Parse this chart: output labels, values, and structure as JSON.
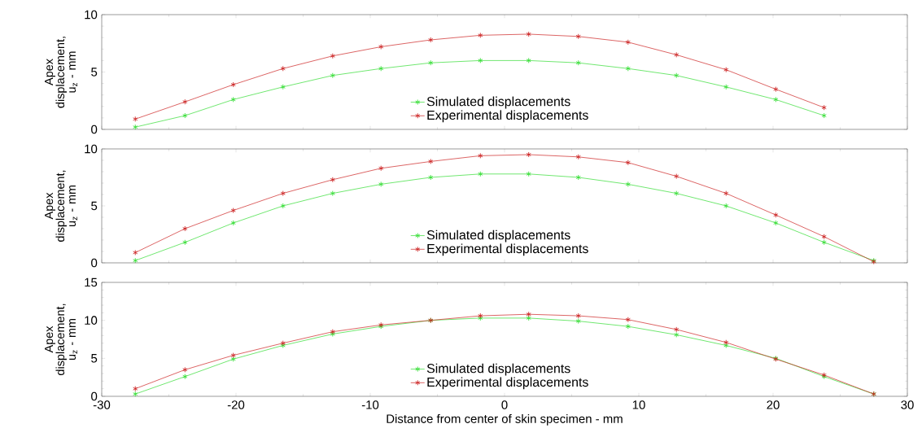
{
  "chart_data": [
    {
      "type": "line",
      "ylabel": "Apex displacement, u$_{z}$ - mm",
      "xlim": [
        -30,
        30
      ],
      "xticks": [
        -30,
        -20,
        -10,
        0,
        10,
        20,
        30
      ],
      "ylim": [
        0,
        10
      ],
      "yticks": [
        0,
        5,
        10
      ],
      "tick_labels": "y",
      "legend": "bottom",
      "marker": "cross",
      "grid": false,
      "series": [
        {
          "name": "Simulated displacements",
          "color": "#33dd33",
          "x": [
            -27.5,
            -23.8,
            -20.2,
            -16.5,
            -12.8,
            -9.2,
            -5.5,
            -1.8,
            1.8,
            5.5,
            9.2,
            12.8,
            16.5,
            20.2,
            23.8
          ],
          "values": [
            0.2,
            1.2,
            2.6,
            3.7,
            4.7,
            5.3,
            5.8,
            6.0,
            6.0,
            5.8,
            5.3,
            4.7,
            3.7,
            2.6,
            1.2
          ]
        },
        {
          "name": "Experimental displacements",
          "color": "#cc2222",
          "x": [
            -27.5,
            -23.8,
            -20.2,
            -16.5,
            -12.8,
            -9.2,
            -5.5,
            -1.8,
            1.8,
            5.5,
            9.2,
            12.8,
            16.5,
            20.2,
            23.8
          ],
          "values": [
            0.9,
            2.4,
            3.9,
            5.3,
            6.4,
            7.2,
            7.8,
            8.2,
            8.3,
            8.1,
            7.6,
            6.5,
            5.2,
            3.5,
            1.9
          ]
        }
      ]
    },
    {
      "type": "line",
      "ylabel": "Apex displacement, u$_{z}$ - mm",
      "xlim": [
        -30,
        30
      ],
      "xticks": [
        -30,
        -20,
        -10,
        0,
        10,
        20,
        30
      ],
      "ylim": [
        0,
        10
      ],
      "yticks": [
        0,
        5,
        10
      ],
      "tick_labels": "y",
      "legend": "bottom",
      "marker": "cross",
      "grid": false,
      "series": [
        {
          "name": "Simulated displacements",
          "color": "#33dd33",
          "x": [
            -27.5,
            -23.8,
            -20.2,
            -16.5,
            -12.8,
            -9.2,
            -5.5,
            -1.8,
            1.8,
            5.5,
            9.2,
            12.8,
            16.5,
            20.2,
            23.8,
            27.5
          ],
          "values": [
            0.2,
            1.8,
            3.5,
            5.0,
            6.1,
            6.9,
            7.5,
            7.8,
            7.8,
            7.5,
            6.9,
            6.1,
            5.0,
            3.5,
            1.8,
            0.2
          ]
        },
        {
          "name": "Experimental displacements",
          "color": "#cc2222",
          "x": [
            -27.5,
            -23.8,
            -20.2,
            -16.5,
            -12.8,
            -9.2,
            -5.5,
            -1.8,
            1.8,
            5.5,
            9.2,
            12.8,
            16.5,
            20.2,
            23.8,
            27.5
          ],
          "values": [
            0.9,
            3.0,
            4.6,
            6.1,
            7.3,
            8.3,
            8.9,
            9.4,
            9.5,
            9.3,
            8.8,
            7.6,
            6.1,
            4.2,
            2.3,
            0.1
          ]
        }
      ]
    },
    {
      "type": "line",
      "xlabel": "Distance from center of skin specimen - mm",
      "ylabel": "Apex displacement, u$_{z}$ - mm",
      "xlim": [
        -30,
        30
      ],
      "xticks": [
        -30,
        -20,
        -10,
        0,
        10,
        20,
        30
      ],
      "ylim": [
        0,
        15
      ],
      "yticks": [
        0,
        5,
        10,
        15
      ],
      "legend": "bottom",
      "marker": "cross",
      "grid": false,
      "series": [
        {
          "name": "Simulated displacements",
          "color": "#33dd33",
          "x": [
            -27.5,
            -23.8,
            -20.2,
            -16.5,
            -12.8,
            -9.2,
            -5.5,
            -1.8,
            1.8,
            5.5,
            9.2,
            12.8,
            16.5,
            20.2,
            23.8,
            27.5
          ],
          "values": [
            0.3,
            2.6,
            4.9,
            6.7,
            8.2,
            9.2,
            10.0,
            10.3,
            10.3,
            9.9,
            9.2,
            8.1,
            6.7,
            5.0,
            2.6,
            0.3
          ]
        },
        {
          "name": "Experimental displacements",
          "color": "#cc2222",
          "x": [
            -27.5,
            -23.8,
            -20.2,
            -16.5,
            -12.8,
            -9.2,
            -5.5,
            -1.8,
            1.8,
            5.5,
            9.2,
            12.8,
            16.5,
            20.2,
            23.8,
            27.5
          ],
          "values": [
            1.0,
            3.5,
            5.4,
            7.0,
            8.5,
            9.4,
            10.0,
            10.6,
            10.8,
            10.6,
            10.1,
            8.8,
            7.1,
            4.9,
            2.8,
            0.3
          ]
        }
      ]
    }
  ]
}
